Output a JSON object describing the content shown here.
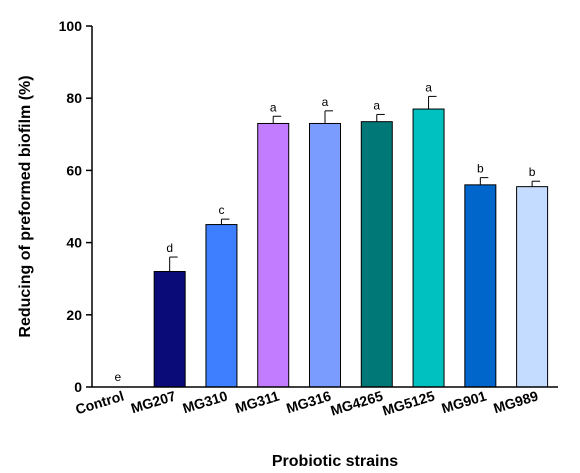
{
  "chart_data": {
    "type": "bar",
    "xlabel": "Probiotic strains",
    "ylabel": "Reducing of preformed biofilm (%)",
    "ylim": [
      0,
      100
    ],
    "yticks": [
      0,
      20,
      40,
      60,
      80,
      100
    ],
    "grid": false,
    "categories": [
      "Control",
      "MG207",
      "MG310",
      "MG311",
      "MG316",
      "MG4265",
      "MG5125",
      "MG901",
      "MG989"
    ],
    "values": [
      0,
      32,
      45,
      73,
      73,
      73.5,
      77,
      56,
      55.5
    ],
    "errors": [
      0,
      4,
      1.5,
      2,
      3.5,
      2,
      3.5,
      2,
      1.5
    ],
    "significance": [
      "e",
      "d",
      "c",
      "a",
      "a",
      "a",
      "a",
      "b",
      "b"
    ],
    "colors": [
      "#ffffff",
      "#0a0a78",
      "#3d7fff",
      "#c27cff",
      "#7b9cff",
      "#007878",
      "#00c0c0",
      "#0066cc",
      "#c4dcff"
    ]
  }
}
